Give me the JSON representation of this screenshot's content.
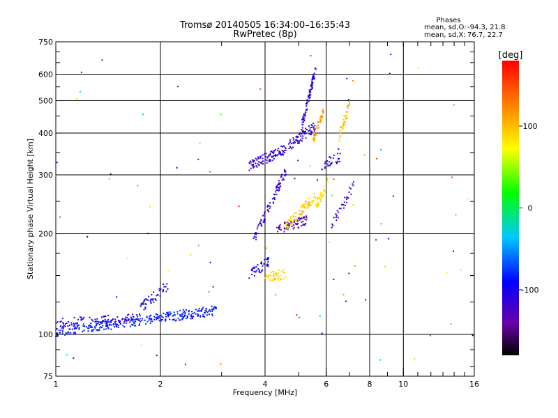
{
  "chart_data": {
    "type": "scatter",
    "title": "Tromsø 20140505 16:34:00–16:35:43",
    "subtitle": "RwPretec (8p)",
    "xlabel": "Frequency [MHz]",
    "ylabel": "Stationary phase Virtual Height [km]",
    "xscale": "log",
    "yscale": "log",
    "xlim": [
      1,
      16
    ],
    "ylim": [
      75,
      750
    ],
    "x_ticks": [
      1,
      2,
      4,
      6,
      8,
      10,
      16
    ],
    "y_ticks": [
      75,
      100,
      200,
      300,
      400,
      500,
      600,
      750
    ],
    "x_gridlines": [
      2,
      4,
      6,
      8,
      10
    ],
    "y_gridlines": [
      100,
      200,
      300,
      400,
      500,
      600
    ],
    "grid": true,
    "legend_placement": "right",
    "phase_stats": {
      "heading": "Phases",
      "line1_label": "mean, sd,O:",
      "line1_values": "-94.3, 21.8",
      "line2_label": "mean, sd,X:",
      "line2_values": "76.7, 22.7"
    },
    "colorbar": {
      "label": "[deg]",
      "range": [
        -180,
        180
      ],
      "ticks": [
        -100,
        0,
        100
      ],
      "colormap": "rainbow",
      "placement": "right"
    },
    "traces": [
      {
        "x_range": [
          1.0,
          2.9
        ],
        "height_start": 102,
        "height_end": 118,
        "phase": -85,
        "points": 320
      },
      {
        "x_range": [
          1.0,
          1.8
        ],
        "height_start": 108,
        "height_end": 112,
        "phase": -110,
        "points": 90
      },
      {
        "x_range": [
          1.75,
          2.1
        ],
        "height_start": 120,
        "height_end": 140,
        "phase": -100,
        "points": 50
      },
      {
        "x_range": [
          3.6,
          4.4
        ],
        "height_start": 320,
        "height_end": 350,
        "phase": -115,
        "points": 90
      },
      {
        "x_range": [
          4.4,
          5.6
        ],
        "height_start": 350,
        "height_end": 420,
        "phase": -112,
        "points": 100
      },
      {
        "x_range": [
          5.1,
          5.6
        ],
        "height_start": 420,
        "height_end": 620,
        "phase": -108,
        "points": 80
      },
      {
        "x_range": [
          3.7,
          4.6
        ],
        "height_start": 190,
        "height_end": 310,
        "phase": -118,
        "points": 90
      },
      {
        "x_range": [
          4.3,
          5.3
        ],
        "height_start": 205,
        "height_end": 220,
        "phase": -128,
        "points": 70
      },
      {
        "x_range": [
          3.6,
          4.1
        ],
        "height_start": 150,
        "height_end": 165,
        "phase": -100,
        "points": 40
      },
      {
        "x_range": [
          4.0,
          4.6
        ],
        "height_start": 148,
        "height_end": 152,
        "phase": 90,
        "points": 45
      },
      {
        "x_range": [
          4.6,
          5.6
        ],
        "height_start": 210,
        "height_end": 260,
        "phase": 95,
        "points": 80
      },
      {
        "x_range": [
          5.6,
          6.1
        ],
        "height_start": 240,
        "height_end": 290,
        "phase": 85,
        "points": 40
      },
      {
        "x_range": [
          5.5,
          5.9
        ],
        "height_start": 380,
        "height_end": 470,
        "phase": 110,
        "points": 45
      },
      {
        "x_range": [
          6.5,
          7.0
        ],
        "height_start": 380,
        "height_end": 490,
        "phase": 100,
        "points": 40
      },
      {
        "x_range": [
          6.2,
          7.2
        ],
        "height_start": 210,
        "height_end": 280,
        "phase": -120,
        "points": 35
      },
      {
        "x_range": [
          5.8,
          6.6
        ],
        "height_start": 320,
        "height_end": 340,
        "phase": -110,
        "points": 30
      }
    ],
    "scatter_noise": {
      "x_range": [
        1.0,
        16.0
      ],
      "height_range": [
        80,
        700
      ],
      "phase_range": [
        -180,
        180
      ],
      "points": 90
    }
  }
}
